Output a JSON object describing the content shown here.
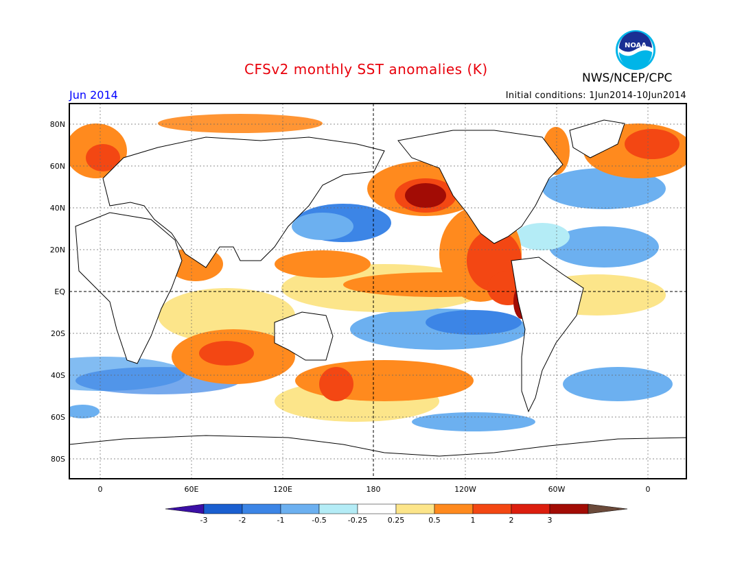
{
  "header": {
    "title": "CFSv2 monthly SST anomalies (K)",
    "month": "Jun 2014",
    "initial_conditions": "Initial conditions: 1Jun2014-10Jun2014",
    "agency": "NWS/NCEP/CPC",
    "logo_text": "NOAA"
  },
  "axes": {
    "lat_labels": [
      "80N",
      "60N",
      "40N",
      "20N",
      "EQ",
      "20S",
      "40S",
      "60S",
      "80S"
    ],
    "lon_labels": [
      "0",
      "60E",
      "120E",
      "180",
      "120W",
      "60W",
      "0"
    ]
  },
  "colorbar": {
    "labels": [
      "-3",
      "-2",
      "-1",
      "-0.5",
      "-0.25",
      "0.25",
      "0.5",
      "1",
      "2",
      "3"
    ],
    "colors": [
      "#3b0fa5",
      "#1a5fd0",
      "#3c85e6",
      "#6cb0f0",
      "#b4ecf6",
      "#ffffff",
      "#fce58a",
      "#ff8a1e",
      "#f34713",
      "#dc1e0e",
      "#a20c05",
      "#6b4a3a"
    ]
  },
  "map_colors": {
    "land": "#ffffff",
    "ocean_neutral": "#ffffff",
    "warm_light": "#fce58a",
    "warm": "#ff8a1e",
    "warmer": "#f34713",
    "hot": "#a20c05",
    "cool_light": "#b4ecf6",
    "cool": "#6cb0f0",
    "cooler": "#3c85e6"
  }
}
